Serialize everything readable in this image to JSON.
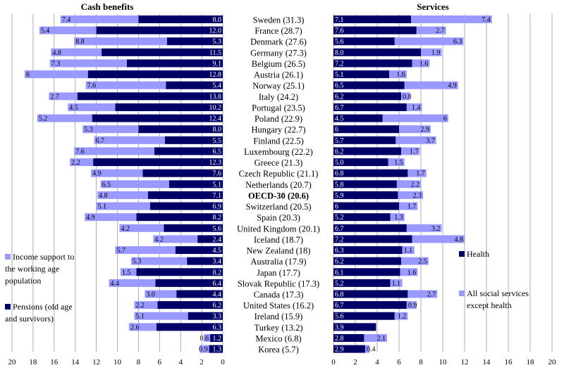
{
  "colors": {
    "dark": "#000066",
    "light": "#9999ff",
    "grid": "#999999"
  },
  "chart_data": [
    {
      "type": "bar",
      "orientation": "horizontal",
      "stacked": true,
      "direction": "reversed",
      "title": "Cash benefits",
      "categories": [
        "Sweden (31.3)",
        "France (28.7)",
        "Denmark (27.6)",
        "Germany (27.3)",
        "Belgium (26.5)",
        "Austria (26.1)",
        "Norway (25.1)",
        "Italy (24.2)",
        "Portugal (23.5)",
        "Poland (22.9)",
        "Hungary (22.7)",
        "Finland (22.5)",
        "Luxembourg (22.2)",
        "Greece (21.3)",
        "Czech Republic (21.1)",
        "Netherlands (20.7)",
        "OECD-30 (20.6)",
        "Switzerland (20.5)",
        "Spain (20.3)",
        "United Kingdom (20.1)",
        "Iceland (18.7)",
        "New Zealand (18)",
        "Australia (17.9)",
        "Japan (17.7)",
        "Slovak Republic (17.3)",
        "Canada (17.3)",
        "United States (16.2)",
        "Ireland (15.9)",
        "Turkey (13.2)",
        "Mexico (6.8)",
        "Korea (5.7)"
      ],
      "series": [
        {
          "name": "Pensions (old age and survivors)",
          "color": "#000066",
          "values": [
            8.0,
            12.0,
            5.3,
            11.5,
            9.1,
            12.8,
            5.4,
            13.8,
            10.2,
            12.4,
            8.0,
            5.5,
            6.5,
            12.3,
            7.6,
            5.1,
            7.1,
            6.9,
            8.2,
            5.6,
            2.4,
            4.5,
            3.4,
            8.2,
            6.4,
            4.4,
            6.2,
            3.3,
            6.3,
            1.2,
            1.3
          ]
        },
        {
          "name": "Income support to the working age population",
          "color": "#9999ff",
          "values": [
            7.4,
            5.4,
            8.8,
            4.8,
            7.3,
            6.0,
            7.6,
            2.7,
            4.5,
            5.2,
            5.3,
            6.7,
            7.6,
            2.2,
            4.9,
            6.5,
            4.8,
            5.1,
            4.9,
            4.2,
            4.2,
            5.7,
            5.3,
            1.5,
            4.4,
            3.0,
            2.2,
            5.1,
            2.6,
            0.6,
            0.9
          ]
        }
      ],
      "xlim": [
        0,
        20
      ],
      "xticks": [
        20,
        18,
        16,
        14,
        12,
        10,
        8,
        6,
        4,
        2,
        0
      ],
      "legend": [
        "Income support to the working age population",
        "Pensions (old age and survivors)"
      ],
      "highlight": "OECD-30 (20.6)"
    },
    {
      "type": "bar",
      "orientation": "horizontal",
      "stacked": true,
      "title": "Services",
      "categories": [
        "Sweden (31.3)",
        "France (28.7)",
        "Denmark (27.6)",
        "Germany (27.3)",
        "Belgium (26.5)",
        "Austria (26.1)",
        "Norway (25.1)",
        "Italy (24.2)",
        "Portugal (23.5)",
        "Poland (22.9)",
        "Hungary (22.7)",
        "Finland (22.5)",
        "Luxembourg (22.2)",
        "Greece (21.3)",
        "Czech Republic (21.1)",
        "Netherlands (20.7)",
        "OECD-30 (20.6)",
        "Switzerland (20.5)",
        "Spain (20.3)",
        "United Kingdom (20.1)",
        "Iceland (18.7)",
        "New Zealand (18)",
        "Australia (17.9)",
        "Japan (17.7)",
        "Slovak Republic (17.3)",
        "Canada (17.3)",
        "United States (16.2)",
        "Ireland (15.9)",
        "Turkey (13.2)",
        "Mexico (6.8)",
        "Korea (5.7)"
      ],
      "series": [
        {
          "name": "Health",
          "color": "#000066",
          "values": [
            7.1,
            7.6,
            5.6,
            8.0,
            7.2,
            5.1,
            6.5,
            6.2,
            6.7,
            4.5,
            6.0,
            5.7,
            6.2,
            5.0,
            6.8,
            5.8,
            5.9,
            6.0,
            5.2,
            6.7,
            7.2,
            6.3,
            6.2,
            6.1,
            5.2,
            6.8,
            6.7,
            5.6,
            3.9,
            2.8,
            2.9
          ]
        },
        {
          "name": "All social services except health",
          "color": "#9999ff",
          "values": [
            7.4,
            2.7,
            6.3,
            1.9,
            1.6,
            1.6,
            4.9,
            0.8,
            1.4,
            6,
            2.9,
            3.7,
            1.7,
            1.5,
            1.7,
            2.2,
            2.3,
            1.7,
            1.3,
            3.2,
            4.8,
            1.1,
            2.5,
            1.6,
            1.1,
            2.7,
            0.9,
            1.2,
            null,
            2.1,
            0.4
          ]
        }
      ],
      "xlim": [
        0,
        20
      ],
      "xticks": [
        0,
        2,
        4,
        6,
        8,
        10,
        12,
        14,
        16,
        18,
        20
      ],
      "legend": [
        "Health",
        "All social services except health"
      ]
    }
  ]
}
